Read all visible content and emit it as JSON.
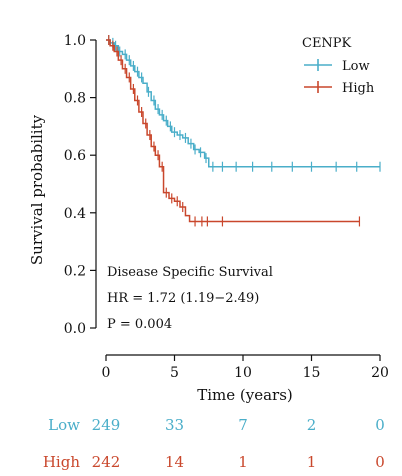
{
  "chart_data": {
    "type": "line",
    "subtype": "kaplan-meier",
    "xlabel": "Time (years)",
    "ylabel": "Survival probability",
    "xlim": [
      0,
      20
    ],
    "ylim": [
      0,
      1
    ],
    "xticks": [
      0,
      5,
      10,
      15,
      20
    ],
    "yticks": [
      0.0,
      0.2,
      0.4,
      0.6,
      0.8,
      1.0
    ],
    "ytick_labels": [
      "0.0",
      "0.2",
      "0.4",
      "0.6",
      "0.8",
      "1.0"
    ],
    "legend_title": "CENPK",
    "legend_position": "top-right",
    "annotation": {
      "line1": "Disease Specific Survival",
      "line2": "HR = 1.72 (1.19−2.49)",
      "line3": "P = 0.004"
    },
    "series": [
      {
        "name": "Low",
        "color": "#4aaec9",
        "steps": [
          [
            0,
            1.0
          ],
          [
            0.3,
            0.99
          ],
          [
            0.6,
            0.98
          ],
          [
            0.9,
            0.96
          ],
          [
            1.2,
            0.95
          ],
          [
            1.5,
            0.93
          ],
          [
            1.8,
            0.91
          ],
          [
            2.1,
            0.89
          ],
          [
            2.4,
            0.87
          ],
          [
            2.7,
            0.85
          ],
          [
            3.0,
            0.82
          ],
          [
            3.3,
            0.79
          ],
          [
            3.6,
            0.76
          ],
          [
            3.9,
            0.74
          ],
          [
            4.2,
            0.72
          ],
          [
            4.5,
            0.7
          ],
          [
            4.8,
            0.68
          ],
          [
            5.2,
            0.67
          ],
          [
            5.6,
            0.66
          ],
          [
            6.0,
            0.64
          ],
          [
            6.4,
            0.62
          ],
          [
            6.8,
            0.61
          ],
          [
            7.2,
            0.59
          ],
          [
            7.5,
            0.56
          ],
          [
            20,
            0.56
          ]
        ],
        "censor": [
          0.2,
          0.5,
          0.7,
          1.0,
          1.4,
          1.7,
          2.0,
          2.3,
          2.6,
          3.1,
          3.5,
          3.8,
          4.1,
          4.4,
          4.7,
          5.0,
          5.4,
          5.8,
          6.2,
          6.5,
          6.9,
          7.3,
          7.8,
          8.5,
          9.5,
          10.7,
          12.1,
          13.6,
          15.0,
          16.8,
          18.3,
          20.0
        ],
        "at_risk": [
          249,
          33,
          7,
          2,
          0
        ]
      },
      {
        "name": "High",
        "color": "#c9472c",
        "steps": [
          [
            0,
            1.0
          ],
          [
            0.3,
            0.98
          ],
          [
            0.6,
            0.96
          ],
          [
            0.9,
            0.93
          ],
          [
            1.2,
            0.9
          ],
          [
            1.5,
            0.87
          ],
          [
            1.8,
            0.83
          ],
          [
            2.1,
            0.79
          ],
          [
            2.4,
            0.75
          ],
          [
            2.7,
            0.71
          ],
          [
            3.0,
            0.67
          ],
          [
            3.3,
            0.63
          ],
          [
            3.6,
            0.6
          ],
          [
            3.9,
            0.56
          ],
          [
            4.2,
            0.47
          ],
          [
            4.6,
            0.45
          ],
          [
            5.0,
            0.44
          ],
          [
            5.4,
            0.42
          ],
          [
            5.8,
            0.39
          ],
          [
            6.1,
            0.37
          ],
          [
            18.5,
            0.37
          ]
        ],
        "censor": [
          0.2,
          0.5,
          0.8,
          1.1,
          1.4,
          1.7,
          2.0,
          2.3,
          2.6,
          2.9,
          3.2,
          3.5,
          3.8,
          4.1,
          4.4,
          4.8,
          5.2,
          5.6,
          6.5,
          7.0,
          7.4,
          8.5,
          18.5
        ],
        "at_risk": [
          242,
          14,
          1,
          1,
          0
        ]
      }
    ]
  }
}
